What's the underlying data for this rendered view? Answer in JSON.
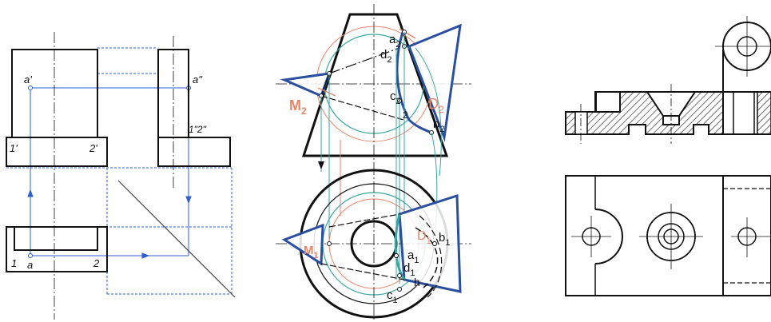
{
  "panel1": {
    "labels": {
      "a_prime": "a'",
      "a_double_prime": "a\"",
      "one_two_double": "1\"2\"",
      "one_prime": "1'",
      "two_prime": "2'",
      "one": "1",
      "a": "a",
      "two": "2"
    },
    "colors": {
      "line": "#111111",
      "construction": "#2f5fd0"
    }
  },
  "panel2": {
    "labels": {
      "a2": "a",
      "a2_sub": "2",
      "d2": "d",
      "d2_sub": "2",
      "c2": "c",
      "c2_sub": "2",
      "two_sub": "2",
      "M2": "M",
      "M2_sub": "2",
      "D2": "D",
      "D2_sub": "2",
      "b2": "b",
      "b2_sub": "2",
      "M1": "M",
      "M1_sub": "1",
      "D1": "D",
      "D1_sub": "1",
      "b1": "b",
      "b1_sub": "1",
      "a1": "a",
      "a1_sub": "1",
      "d1": "d",
      "d1_sub": "1",
      "h": "h",
      "c1": "c",
      "c1_sub": "1"
    },
    "colors": {
      "body": "#111111",
      "plane": "#2b4fa0",
      "orange": "#e8866a",
      "teal": "#3aa6a0"
    }
  },
  "panel3": {
    "colors": {
      "line": "#111111",
      "hatch": "#333333"
    }
  }
}
